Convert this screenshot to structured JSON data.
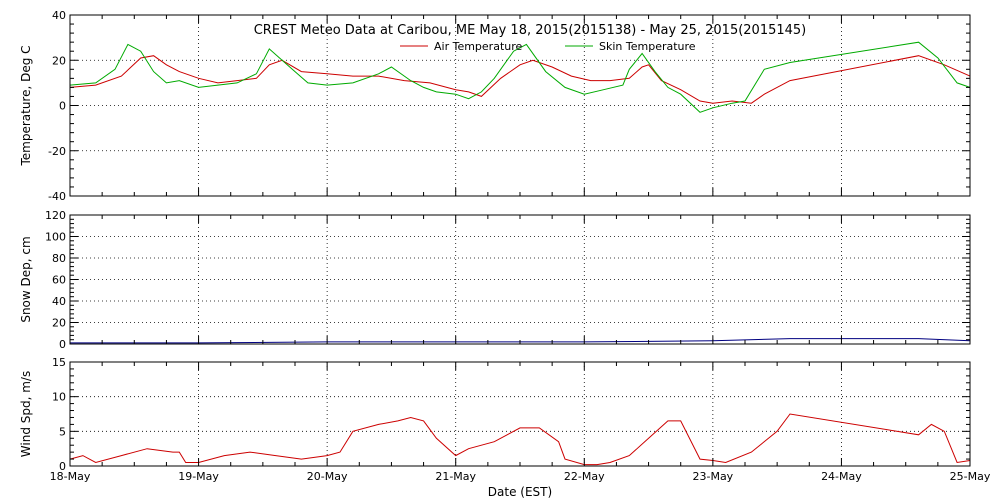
{
  "title": "CREST Meteo Data at Caribou, ME   May 18, 2015(2015138) - May 25, 2015(2015145)",
  "xlabel": "Date (EST)",
  "chart_data": [
    {
      "type": "line",
      "panel": "temperature",
      "ylabel": "Temperature, Deg C",
      "ylim": [
        -40,
        40
      ],
      "yticks": [
        -40,
        -20,
        0,
        20,
        40
      ],
      "xlim": [
        0,
        7
      ],
      "xticks": [
        0,
        1,
        2,
        3,
        4,
        5,
        6,
        7
      ],
      "xtick_labels": [
        "18-May",
        "19-May",
        "20-May",
        "21-May",
        "22-May",
        "23-May",
        "24-May",
        "25-May"
      ],
      "grid": true,
      "legend": "top-center",
      "series": [
        {
          "name": "Air Temperature",
          "color": "#cc0000",
          "x": [
            0,
            0.2,
            0.4,
            0.55,
            0.65,
            0.75,
            0.85,
            1.0,
            1.15,
            1.3,
            1.45,
            1.55,
            1.65,
            1.8,
            2.0,
            2.2,
            2.4,
            2.6,
            2.8,
            3.0,
            3.1,
            3.2,
            3.35,
            3.5,
            3.6,
            3.75,
            3.9,
            4.05,
            4.2,
            4.35,
            4.45,
            4.5,
            4.6,
            4.75,
            4.9,
            5.0,
            5.15,
            5.3,
            5.4,
            5.6,
            6.6,
            6.8,
            7.0
          ],
          "y": [
            8,
            9,
            13,
            21,
            22,
            18,
            15,
            12,
            10,
            11,
            12,
            18,
            20,
            15,
            14,
            13,
            13,
            11,
            10,
            7,
            6,
            4,
            12,
            18,
            20,
            17,
            13,
            11,
            11,
            12,
            17,
            18,
            11,
            7,
            2,
            1,
            2,
            1,
            5,
            11,
            22,
            18,
            13
          ]
        },
        {
          "name": "Skin Temperature",
          "color": "#00aa00",
          "x": [
            0,
            0.2,
            0.35,
            0.45,
            0.55,
            0.65,
            0.75,
            0.85,
            1.0,
            1.15,
            1.3,
            1.45,
            1.55,
            1.65,
            1.75,
            1.85,
            2.0,
            2.2,
            2.4,
            2.5,
            2.65,
            2.75,
            2.85,
            3.0,
            3.1,
            3.2,
            3.3,
            3.45,
            3.55,
            3.7,
            3.85,
            4.0,
            4.15,
            4.3,
            4.35,
            4.45,
            4.55,
            4.65,
            4.75,
            4.9,
            5.0,
            5.15,
            5.25,
            5.4,
            5.6,
            6.6,
            6.75,
            6.9,
            7.0
          ],
          "y": [
            9,
            10,
            16,
            27,
            24,
            15,
            10,
            11,
            8,
            9,
            10,
            14,
            25,
            20,
            15,
            10,
            9,
            10,
            14,
            17,
            11,
            8,
            6,
            5,
            3,
            6,
            12,
            24,
            27,
            15,
            8,
            5,
            7,
            9,
            16,
            23,
            15,
            8,
            5,
            -3,
            -1,
            1,
            2,
            16,
            19,
            28,
            21,
            10,
            8
          ]
        }
      ]
    },
    {
      "type": "line",
      "panel": "snow",
      "ylabel": "Snow Dep, cm",
      "ylim": [
        0,
        120
      ],
      "yticks": [
        0,
        20,
        40,
        60,
        80,
        100,
        120
      ],
      "xlim": [
        0,
        7
      ],
      "xticks": [
        0,
        1,
        2,
        3,
        4,
        5,
        6,
        7
      ],
      "grid": true,
      "series": [
        {
          "name": "",
          "color": "#000080",
          "x": [
            0,
            1,
            2,
            3,
            4,
            5,
            5.6,
            6.6,
            7.0
          ],
          "y": [
            1,
            1,
            2,
            2,
            2,
            3,
            5,
            5,
            3
          ]
        }
      ]
    },
    {
      "type": "line",
      "panel": "wind",
      "ylabel": "Wind Spd, m/s",
      "ylim": [
        0,
        15
      ],
      "yticks": [
        0,
        5,
        10,
        15
      ],
      "xlim": [
        0,
        7
      ],
      "xticks": [
        0,
        1,
        2,
        3,
        4,
        5,
        6,
        7
      ],
      "xtick_labels": [
        "18-May",
        "19-May",
        "20-May",
        "21-May",
        "22-May",
        "23-May",
        "24-May",
        "25-May"
      ],
      "grid": true,
      "series": [
        {
          "name": "",
          "color": "#cc0000",
          "x": [
            0,
            0.1,
            0.2,
            0.4,
            0.6,
            0.8,
            0.85,
            0.9,
            1.0,
            1.2,
            1.4,
            1.6,
            1.8,
            2.0,
            2.1,
            2.2,
            2.4,
            2.55,
            2.65,
            2.75,
            2.85,
            3.0,
            3.1,
            3.3,
            3.5,
            3.65,
            3.8,
            3.85,
            4.0,
            4.1,
            4.2,
            4.35,
            4.5,
            4.65,
            4.75,
            4.9,
            5.0,
            5.1,
            5.3,
            5.5,
            5.6,
            6.6,
            6.7,
            6.8,
            6.9,
            7.0
          ],
          "y": [
            1,
            1.5,
            0.5,
            1.5,
            2.5,
            2,
            2,
            0.5,
            0.5,
            1.5,
            2,
            1.5,
            1,
            1.5,
            2,
            5,
            6,
            6.5,
            7,
            6.5,
            4,
            1.5,
            2.5,
            3.5,
            5.5,
            5.5,
            3.5,
            1,
            0.2,
            0.2,
            0.5,
            1.5,
            4,
            6.5,
            6.5,
            1,
            0.8,
            0.5,
            2,
            5,
            7.5,
            4.5,
            6,
            5,
            0.5,
            0.8
          ]
        }
      ]
    }
  ]
}
